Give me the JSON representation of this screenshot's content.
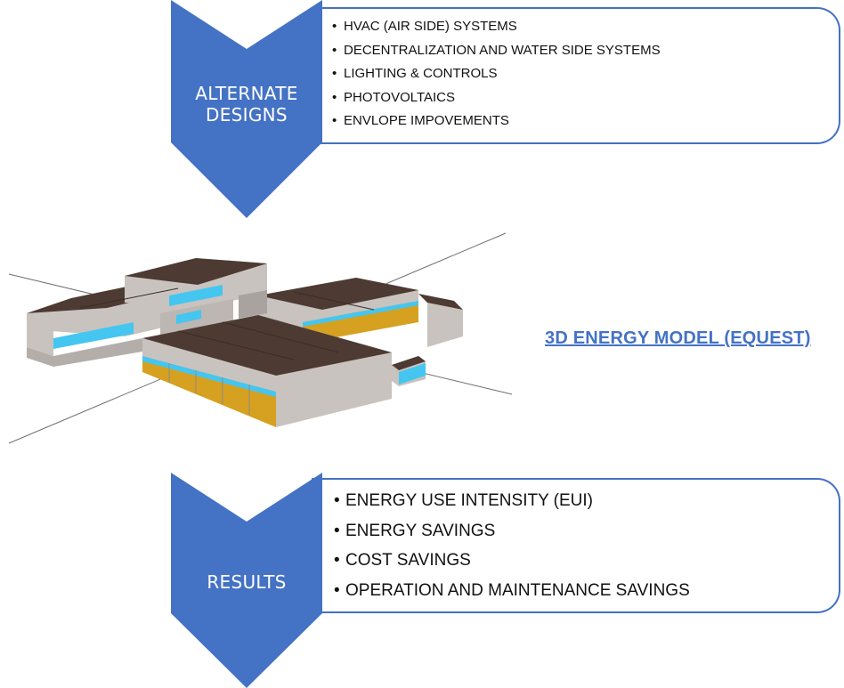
{
  "top_section": {
    "label_line1": "ALTERNATE",
    "label_line2": "DESIGNS",
    "items": [
      "HVAC (AIR SIDE) SYSTEMS",
      "DECENTRALIZATION AND WATER SIDE SYSTEMS",
      "LIGHTING & CONTROLS",
      "PHOTOVOLTAICS",
      "ENVLOPE IMPOVEMENTS"
    ]
  },
  "middle_section": {
    "label": "3D ENERGY MODEL (EQUEST)"
  },
  "bottom_section": {
    "label": "RESULTS",
    "items": [
      "ENERGY USE INTENSITY (EUI)",
      "ENERGY SAVINGS",
      "COST SAVINGS",
      "OPERATION AND MAINTENANCE SAVINGS"
    ]
  },
  "colors": {
    "chevron_fill": "#4472c4",
    "box_border": "#4472c4",
    "label_text": "#ffffff",
    "model_label": "#4472c4",
    "roof": "#4d3b33",
    "wall": "#c9c3bf",
    "glazing": "#44c6f0",
    "panel": "#d6a020"
  }
}
